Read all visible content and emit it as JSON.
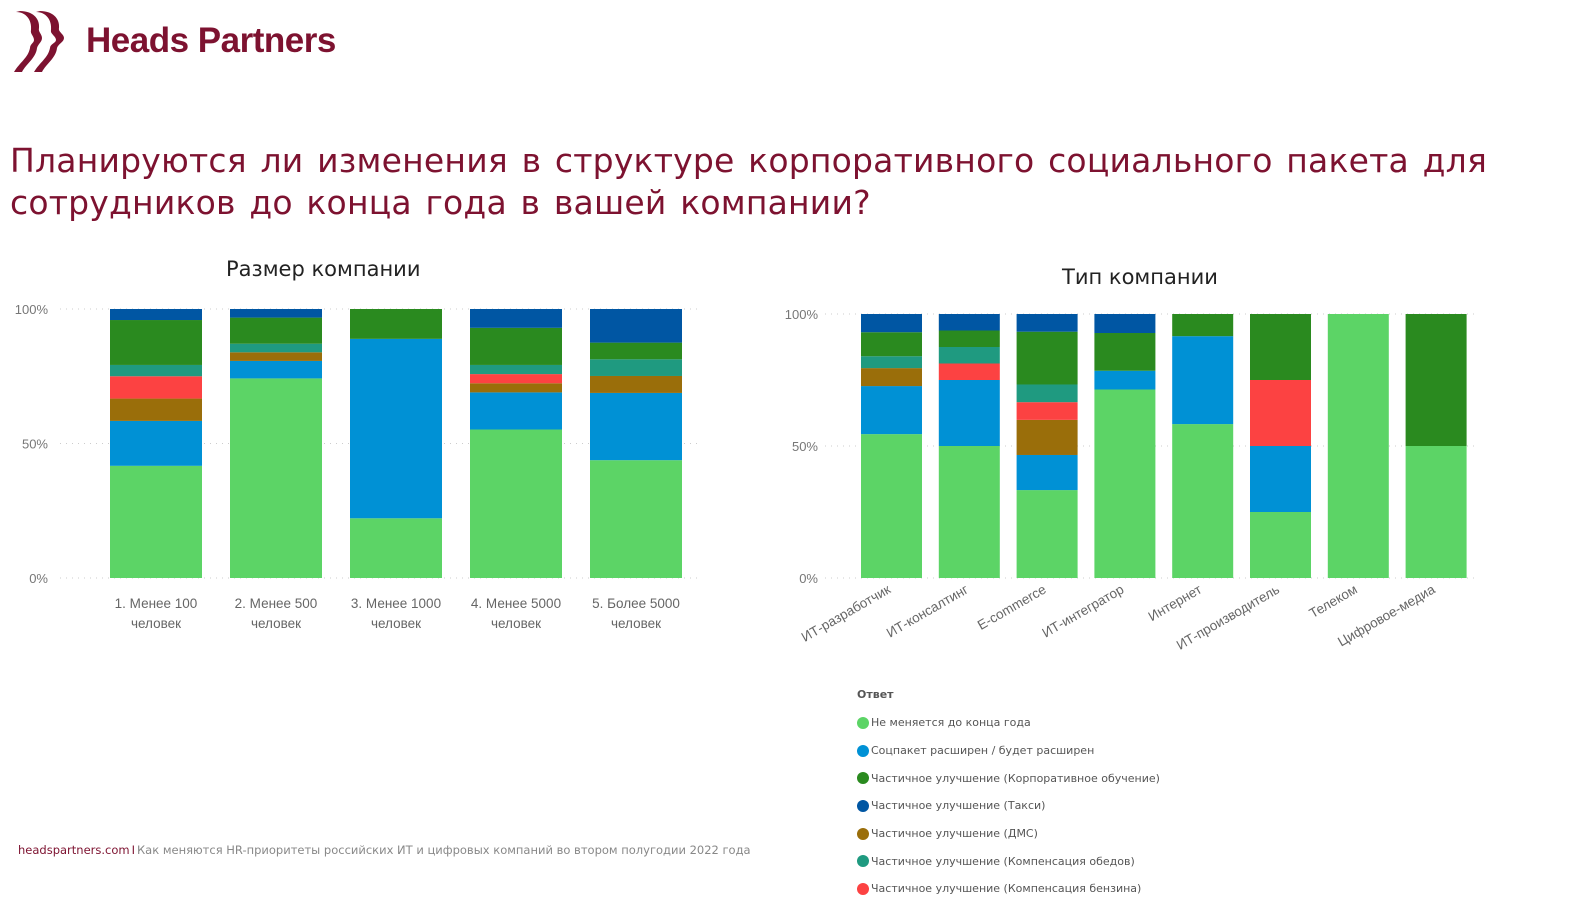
{
  "brand": {
    "name": "Heads Partners",
    "color": "#7d1230"
  },
  "title": "Планируются ли изменения в структуре корпоративного социального пакета для сотрудников до конца года в вашей компании?",
  "legend": {
    "title": "Ответ",
    "items": [
      {
        "label": "Не меняется до конца года",
        "color": "#5cd466"
      },
      {
        "label": "Соцпакет расширен / будет расширен",
        "color": "#0091d5"
      },
      {
        "label": "Частичное улучшение (Корпоративное обучение)",
        "color": "#2a8a1f"
      },
      {
        "label": "Частичное улучшение (Такси)",
        "color": "#0056a3"
      },
      {
        "label": "Частичное улучшение (ДМС)",
        "color": "#9a6e0a"
      },
      {
        "label": "Частичное улучшение (Компенсация обедов)",
        "color": "#1f9a80"
      },
      {
        "label": "Частичное улучшение (Компенсация бензина)",
        "color": "#fc4242"
      }
    ]
  },
  "chart_data": [
    {
      "type": "bar",
      "stacked": "100%",
      "title": "Размер компании",
      "yticks": [
        "0%",
        "50%",
        "100%"
      ],
      "ylim": [
        0,
        100
      ],
      "grid": true,
      "categories": [
        [
          "1. Менее 100",
          "человек"
        ],
        [
          "2. Менее 500",
          "человек"
        ],
        [
          "3. Менее 1000",
          "человек"
        ],
        [
          "4. Менее 5000",
          "человек"
        ],
        [
          "5. Более 5000",
          "человек"
        ]
      ],
      "series": [
        {
          "name": "Не меняется до конца года",
          "values": [
            41.7,
            74.2,
            22.2,
            55.2,
            43.8
          ]
        },
        {
          "name": "Соцпакет расширен / будет расширен",
          "values": [
            16.7,
            6.5,
            66.7,
            13.8,
            25.0
          ]
        },
        {
          "name": "Частичное улучшение (ДМС)",
          "values": [
            8.3,
            3.2,
            0,
            3.4,
            6.3
          ]
        },
        {
          "name": "Частичное улучшение (Компенсация бензина)",
          "values": [
            8.3,
            0,
            0,
            3.4,
            0
          ]
        },
        {
          "name": "Частичное улучшение (Компенсация обедов)",
          "values": [
            4.2,
            3.2,
            0,
            3.4,
            6.2
          ]
        },
        {
          "name": "Частичное улучшение (Корпоративное обучение)",
          "values": [
            16.7,
            9.7,
            11.1,
            13.8,
            6.2
          ]
        },
        {
          "name": "Частичное улучшение (Такси)",
          "values": [
            4.1,
            3.2,
            0,
            7.0,
            12.5
          ]
        }
      ]
    },
    {
      "type": "bar",
      "stacked": "100%",
      "title": "Тип компании",
      "yticks": [
        "0%",
        "50%",
        "100%"
      ],
      "ylim": [
        0,
        100
      ],
      "grid": true,
      "categories": [
        "ИТ-разработчик",
        "ИТ-консалтинг",
        "E-commerce",
        "ИТ-интегратор",
        "Интернет",
        "ИТ-производитель",
        "Телеком",
        "Цифровое-медиа"
      ],
      "series": [
        {
          "name": "Не меняется до конца года",
          "values": [
            54.5,
            50,
            33.3,
            71.4,
            58.3,
            25,
            100,
            50
          ]
        },
        {
          "name": "Соцпакет расширен / будет расширен",
          "values": [
            18.2,
            25,
            13.3,
            7.1,
            33.3,
            25,
            0,
            0
          ]
        },
        {
          "name": "Частичное улучшение (ДМС)",
          "values": [
            6.8,
            0,
            13.3,
            0,
            0,
            0,
            0,
            0
          ]
        },
        {
          "name": "Частичное улучшение (Компенсация бензина)",
          "values": [
            0,
            6.25,
            6.7,
            0,
            0,
            25,
            0,
            0
          ]
        },
        {
          "name": "Частичное улучшение (Компенсация обедов)",
          "values": [
            4.5,
            6.25,
            6.7,
            0,
            0,
            0,
            0,
            0
          ]
        },
        {
          "name": "Частичное улучшение (Корпоративное обучение)",
          "values": [
            9.1,
            6.25,
            20,
            14.3,
            8.4,
            25,
            0,
            50
          ]
        },
        {
          "name": "Частичное улучшение (Такси)",
          "values": [
            6.9,
            6.25,
            6.7,
            7.2,
            0,
            0,
            0,
            0
          ]
        }
      ]
    }
  ],
  "footer": {
    "site": "headspartners.com",
    "separator": "I",
    "text": "Как меняются HR-приоритеты российских ИТ и цифровых компаний во втором полугодии 2022 года"
  }
}
